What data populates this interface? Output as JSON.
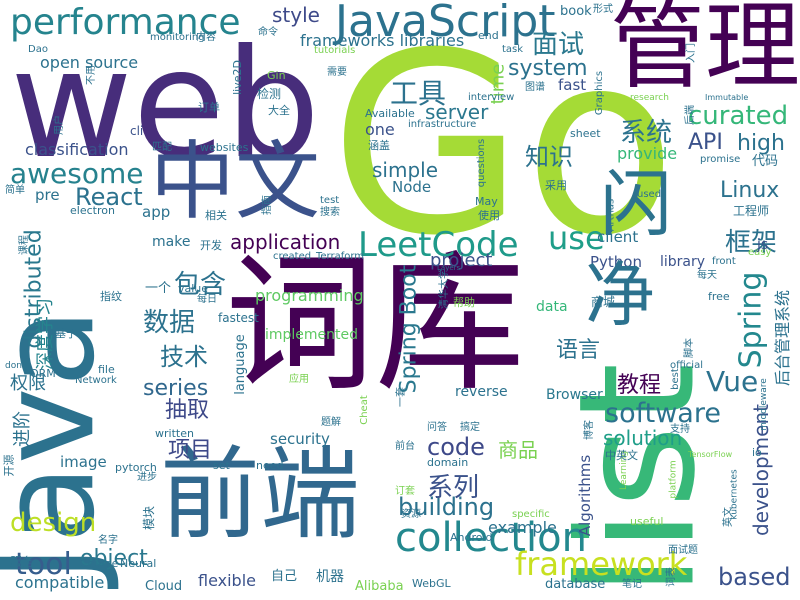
{
  "words": [
    {
      "text": "Go",
      "color": "#a5db36"
    },
    {
      "text": "web",
      "color": "#472d7b"
    },
    {
      "text": "Java",
      "color": "#2c728e"
    },
    {
      "text": "词库",
      "color": "#440154"
    },
    {
      "text": "list",
      "color": "#37b878"
    },
    {
      "text": "前端",
      "color": "#31688e"
    },
    {
      "text": "管理",
      "color": "#440154"
    },
    {
      "text": "中文",
      "color": "#3b528b"
    },
    {
      "text": "JavaScript",
      "color": "#2c728e"
    },
    {
      "text": "performance",
      "color": "#25848e"
    },
    {
      "text": "collection",
      "color": "#23888e"
    },
    {
      "text": "framework",
      "color": "#c8e020"
    },
    {
      "text": "LeetCode",
      "color": "#1f9a8a"
    },
    {
      "text": "tool",
      "color": "#365d8d"
    },
    {
      "text": "software",
      "color": "#2c728e"
    },
    {
      "text": "Vue",
      "color": "#2c728e"
    },
    {
      "text": "React",
      "color": "#2c728e"
    },
    {
      "text": "awesome",
      "color": "#26828e"
    },
    {
      "text": "application",
      "color": "#440154"
    },
    {
      "text": "curated",
      "color": "#35b779"
    },
    {
      "text": "system",
      "color": "#2c728e"
    },
    {
      "text": "server",
      "color": "#2a778e"
    },
    {
      "text": "based",
      "color": "#3b528b"
    },
    {
      "text": "code",
      "color": "#3e4989"
    },
    {
      "text": "building",
      "color": "#2c728e"
    },
    {
      "text": "design",
      "color": "#bddf26"
    },
    {
      "text": "object",
      "color": "#2a788e"
    },
    {
      "text": "solution",
      "color": "#1f9e89"
    },
    {
      "text": "series",
      "color": "#31688e"
    },
    {
      "text": "style",
      "color": "#3e4a89"
    },
    {
      "text": "simple",
      "color": "#2c728e"
    },
    {
      "text": "Linux",
      "color": "#2c728e"
    },
    {
      "text": "API",
      "color": "#3b528b"
    },
    {
      "text": "high",
      "color": "#2c728e"
    },
    {
      "text": "use",
      "color": "#1f9e89"
    },
    {
      "text": "Spring",
      "color": "#23888e"
    },
    {
      "text": "Spring Boot",
      "color": "#2a788e"
    },
    {
      "text": "distributed",
      "color": "#2a788e"
    },
    {
      "text": "development",
      "color": "#3b528b"
    },
    {
      "text": "系统",
      "color": "#2c728e"
    },
    {
      "text": "知识",
      "color": "#2c728e"
    },
    {
      "text": "面试",
      "color": "#2a788e"
    },
    {
      "text": "工具",
      "color": "#2c728e"
    },
    {
      "text": "框架",
      "color": "#2c728e"
    },
    {
      "text": "包含",
      "color": "#2c728e"
    },
    {
      "text": "数据",
      "color": "#2c728e"
    },
    {
      "text": "技术",
      "color": "#2c728e"
    },
    {
      "text": "语言",
      "color": "#2c728e"
    },
    {
      "text": "系列",
      "color": "#3b528b"
    },
    {
      "text": "教程",
      "color": "#440154"
    },
    {
      "text": "抽取",
      "color": "#3e4989"
    },
    {
      "text": "项目",
      "color": "#3e4989"
    },
    {
      "text": "商品",
      "color": "#7ad151"
    },
    {
      "text": "权限",
      "color": "#2c728e"
    },
    {
      "text": "深度学习",
      "color": "#25848e"
    },
    {
      "text": "进阶",
      "color": "#2c728e"
    },
    {
      "text": "后台管理系统",
      "color": "#2c728e"
    },
    {
      "text": "classification",
      "color": "#3b528b"
    },
    {
      "text": "open source",
      "color": "#2c728e"
    },
    {
      "text": "frameworks libraries",
      "color": "#2c728e"
    },
    {
      "text": "provide",
      "color": "#35b779"
    },
    {
      "text": "project",
      "color": "#3b528b"
    },
    {
      "text": "programming",
      "color": "#5ec962"
    },
    {
      "text": "implemented",
      "color": "#5ec962"
    },
    {
      "text": "example",
      "color": "#2c728e"
    },
    {
      "text": "compatible",
      "color": "#2c728e"
    },
    {
      "text": "flexible",
      "color": "#3b528b"
    },
    {
      "text": "security",
      "color": "#2c728e"
    },
    {
      "text": "image",
      "color": "#2c728e"
    },
    {
      "text": "Python",
      "color": "#3b528b"
    },
    {
      "text": "client",
      "color": "#2c728e"
    },
    {
      "text": "library",
      "color": "#3b528b"
    },
    {
      "text": "data",
      "color": "#35b779"
    },
    {
      "text": "Browser",
      "color": "#2a788e"
    },
    {
      "text": "reverse",
      "color": "#2c728e"
    },
    {
      "text": "time",
      "color": "#7ad151"
    },
    {
      "text": "fast",
      "color": "#3b528b"
    },
    {
      "text": "one",
      "color": "#3b528b"
    },
    {
      "text": "Node",
      "color": "#2c728e"
    },
    {
      "text": "pre",
      "color": "#2c728e"
    },
    {
      "text": "app",
      "color": "#2c728e"
    },
    {
      "text": "make",
      "color": "#2c728e"
    },
    {
      "text": "language",
      "color": "#2c728e"
    },
    {
      "text": "Algorithms",
      "color": "#3b528b"
    },
    {
      "text": "database",
      "color": "#2c728e"
    },
    {
      "text": "Alibaba",
      "color": "#7ad151"
    },
    {
      "text": "Cloud",
      "color": "#2c728e"
    },
    {
      "text": "WebGL",
      "color": "#2c728e"
    },
    {
      "text": "Android",
      "color": "#2c728e"
    },
    {
      "text": "Neural",
      "color": "#2c728e"
    },
    {
      "text": "Course",
      "color": "#2c728e"
    },
    {
      "text": "pytorch",
      "color": "#2c728e"
    },
    {
      "text": "written",
      "color": "#2c728e"
    },
    {
      "text": "fastest",
      "color": "#2c728e"
    },
    {
      "text": "ORM",
      "color": "#2c728e"
    },
    {
      "text": "Network",
      "color": "#2c728e"
    },
    {
      "text": "file",
      "color": "#2c728e"
    },
    {
      "text": "value",
      "color": "#2c728e"
    },
    {
      "text": "electron",
      "color": "#2c728e"
    },
    {
      "text": "cli",
      "color": "#3b528b"
    },
    {
      "text": "websites",
      "color": "#2c728e"
    },
    {
      "text": "Gin",
      "color": "#7ad151"
    },
    {
      "text": "live2D",
      "color": "#2c728e"
    },
    {
      "text": "Dao",
      "color": "#2c728e"
    },
    {
      "text": "monitoring",
      "color": "#2c728e"
    },
    {
      "text": "tutorials",
      "color": "#7ad151"
    },
    {
      "text": "interview",
      "color": "#2c728e"
    },
    {
      "text": "book",
      "color": "#2c728e"
    },
    {
      "text": "end",
      "color": "#2c728e"
    },
    {
      "text": "task",
      "color": "#2c728e"
    },
    {
      "text": "Available",
      "color": "#2c728e"
    },
    {
      "text": "infrastructure",
      "color": "#2c728e"
    },
    {
      "text": "questions",
      "color": "#2c728e"
    },
    {
      "text": "sheet",
      "color": "#2c728e"
    },
    {
      "text": "test",
      "color": "#2c728e"
    },
    {
      "text": "May",
      "color": "#2c728e"
    },
    {
      "text": "created",
      "color": "#2c728e"
    },
    {
      "text": "Terraform",
      "color": "#2c728e"
    },
    {
      "text": "Graphics",
      "color": "#2c728e"
    },
    {
      "text": "research",
      "color": "#7ad151"
    },
    {
      "text": "Immutable",
      "color": "#2c728e"
    },
    {
      "text": "promise",
      "color": "#2c728e"
    },
    {
      "text": "used",
      "color": "#2c728e"
    },
    {
      "text": "Arthas",
      "color": "#2c728e"
    },
    {
      "text": "front",
      "color": "#2c728e"
    },
    {
      "text": "easy",
      "color": "#7ad151"
    },
    {
      "text": "js",
      "color": "#3b528b"
    },
    {
      "text": "free",
      "color": "#2c728e"
    },
    {
      "text": "official",
      "color": "#2c728e"
    },
    {
      "text": "best",
      "color": "#2c728e"
    },
    {
      "text": "useful",
      "color": "#7ad151"
    },
    {
      "text": "Learning",
      "color": "#7ad151"
    },
    {
      "text": "TensorFlow",
      "color": "#7ad151"
    },
    {
      "text": "platform",
      "color": "#7ad151"
    },
    {
      "text": "kubernetes",
      "color": "#2c728e"
    },
    {
      "text": "middleware",
      "color": "#2c728e"
    },
    {
      "text": "specific",
      "color": "#7ad151"
    },
    {
      "text": "need",
      "color": "#2c728e"
    },
    {
      "text": "set",
      "color": "#2c728e"
    },
    {
      "text": "Cheat",
      "color": "#7ad151"
    },
    {
      "text": "io",
      "color": "#2c728e"
    },
    {
      "text": "don",
      "color": "#2c728e"
    },
    {
      "text": "Layers",
      "color": "#2c728e"
    },
    {
      "text": "domain",
      "color": "#2c728e"
    },
    {
      "text": "工程师",
      "color": "#2c728e"
    },
    {
      "text": "代码",
      "color": "#2c728e"
    },
    {
      "text": "形式",
      "color": "#2c728e"
    },
    {
      "text": "内容",
      "color": "#2c728e"
    },
    {
      "text": "命令",
      "color": "#2c728e"
    },
    {
      "text": "需要",
      "color": "#2c728e"
    },
    {
      "text": "检测",
      "color": "#2c728e"
    },
    {
      "text": "大全",
      "color": "#2c728e"
    },
    {
      "text": "订单",
      "color": "#2c728e"
    },
    {
      "text": "涵盖",
      "color": "#2c728e"
    },
    {
      "text": "采用",
      "color": "#2c728e"
    },
    {
      "text": "图谱",
      "color": "#2c728e"
    },
    {
      "text": "入门",
      "color": "#2c728e"
    },
    {
      "text": "不用",
      "color": "#2c728e"
    },
    {
      "text": "用户",
      "color": "#2c728e"
    },
    {
      "text": "匹配",
      "color": "#2c728e"
    },
    {
      "text": "简单",
      "color": "#2c728e"
    },
    {
      "text": "课程",
      "color": "#2c728e"
    },
    {
      "text": "相关",
      "color": "#2c728e"
    },
    {
      "text": "搜索",
      "color": "#2c728e"
    },
    {
      "text": "指南",
      "color": "#2c728e"
    },
    {
      "text": "使用",
      "color": "#2c728e"
    },
    {
      "text": "开发",
      "color": "#2c728e"
    },
    {
      "text": "一个",
      "color": "#2c728e"
    },
    {
      "text": "指纹",
      "color": "#2c728e"
    },
    {
      "text": "每日",
      "color": "#2c728e"
    },
    {
      "text": "基于",
      "color": "#2c728e"
    },
    {
      "text": "每天",
      "color": "#2c728e"
    },
    {
      "text": "商城",
      "color": "#2c728e"
    },
    {
      "text": "帮助",
      "color": "#7ad151"
    },
    {
      "text": "应用",
      "color": "#7ad151"
    },
    {
      "text": "题解",
      "color": "#2c728e"
    },
    {
      "text": "问答",
      "color": "#2c728e"
    },
    {
      "text": "搞定",
      "color": "#2c728e"
    },
    {
      "text": "前台",
      "color": "#2c728e"
    },
    {
      "text": "订套",
      "color": "#7ad151"
    },
    {
      "text": "资源",
      "color": "#2c728e"
    },
    {
      "text": "名字",
      "color": "#2c728e"
    },
    {
      "text": "服务",
      "color": "#2c728e"
    },
    {
      "text": "开源",
      "color": "#2c728e"
    },
    {
      "text": "进步",
      "color": "#2c728e"
    },
    {
      "text": "自己",
      "color": "#2c728e"
    },
    {
      "text": "机器",
      "color": "#2c728e"
    },
    {
      "text": "模块",
      "color": "#2c728e"
    },
    {
      "text": "中英文",
      "color": "#2c728e"
    },
    {
      "text": "面试题",
      "color": "#2c728e"
    },
    {
      "text": "笔记",
      "color": "#2c728e"
    },
    {
      "text": "支持",
      "color": "#2c728e"
    },
    {
      "text": "英文",
      "color": "#2c728e"
    },
    {
      "text": "词表",
      "color": "#2c728e"
    },
    {
      "text": "后端",
      "color": "#2c728e"
    },
    {
      "text": "脚本",
      "color": "#2c728e"
    },
    {
      "text": "博客",
      "color": "#2c728e"
    },
    {
      "text": "清华大学",
      "color": "#2c728e"
    },
    {
      "text": "一套",
      "color": "#2c728e"
    },
    {
      "text": "闪",
      "color": "#2c728e"
    },
    {
      "text": "净",
      "color": "#2c728e"
    }
  ]
}
